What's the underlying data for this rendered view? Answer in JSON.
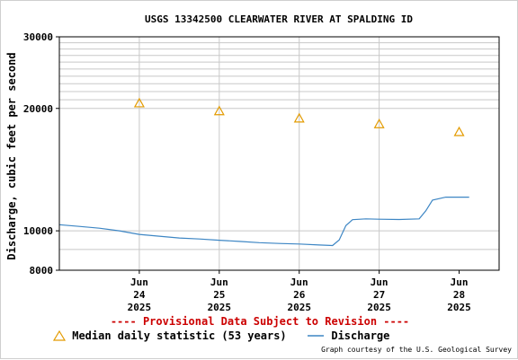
{
  "chart_data": {
    "type": "line",
    "title": "USGS 13342500 CLEARWATER RIVER AT SPALDING ID",
    "xlabel": "",
    "ylabel": "Discharge, cubic feet per second",
    "y_scale": "log",
    "ylim": [
      8000,
      30000
    ],
    "y_ticks": [
      {
        "value": 8000,
        "label": "8000"
      },
      {
        "value": 10000,
        "label": "10000"
      },
      {
        "value": 20000,
        "label": "20000"
      },
      {
        "value": 30000,
        "label": "30000"
      }
    ],
    "xlim": [
      "2025-06-23T12:00",
      "2025-06-29T00:00"
    ],
    "x_ticks": [
      {
        "date": "2025-06-24",
        "label": [
          "Jun",
          "24",
          "2025"
        ]
      },
      {
        "date": "2025-06-25",
        "label": [
          "Jun",
          "25",
          "2025"
        ]
      },
      {
        "date": "2025-06-26",
        "label": [
          "Jun",
          "26",
          "2025"
        ]
      },
      {
        "date": "2025-06-27",
        "label": [
          "Jun",
          "27",
          "2025"
        ]
      },
      {
        "date": "2025-06-28",
        "label": [
          "Jun",
          "28",
          "2025"
        ]
      }
    ],
    "grid": true,
    "legend_position": "bottom",
    "series": [
      {
        "name": "Discharge",
        "color": "#3d86c4",
        "style": "line",
        "points": [
          [
            "2025-06-23T12:00",
            10350
          ],
          [
            "2025-06-23T18:00",
            10250
          ],
          [
            "2025-06-24T00:00",
            10150
          ],
          [
            "2025-06-24T06:00",
            10000
          ],
          [
            "2025-06-24T12:00",
            9800
          ],
          [
            "2025-06-24T18:00",
            9700
          ],
          [
            "2025-06-25T00:00",
            9600
          ],
          [
            "2025-06-25T06:00",
            9550
          ],
          [
            "2025-06-25T12:00",
            9480
          ],
          [
            "2025-06-25T18:00",
            9420
          ],
          [
            "2025-06-26T00:00",
            9350
          ],
          [
            "2025-06-26T06:00",
            9310
          ],
          [
            "2025-06-26T12:00",
            9280
          ],
          [
            "2025-06-26T18:00",
            9230
          ],
          [
            "2025-06-26T22:00",
            9200
          ],
          [
            "2025-06-27T00:00",
            9500
          ],
          [
            "2025-06-27T02:00",
            10300
          ],
          [
            "2025-06-27T04:00",
            10650
          ],
          [
            "2025-06-27T08:00",
            10700
          ],
          [
            "2025-06-27T12:00",
            10680
          ],
          [
            "2025-06-27T18:00",
            10660
          ],
          [
            "2025-06-28T00:00",
            10700
          ],
          [
            "2025-06-28T02:00",
            11200
          ],
          [
            "2025-06-28T04:00",
            11900
          ],
          [
            "2025-06-28T08:00",
            12100
          ],
          [
            "2025-06-28T12:00",
            12100
          ],
          [
            "2025-06-28T15:00",
            12100
          ]
        ]
      },
      {
        "name": "Median daily statistic (53 years)",
        "color": "#e39b00",
        "style": "triangle",
        "points": [
          [
            "2025-06-24T12:00",
            20600
          ],
          [
            "2025-06-25T12:00",
            19700
          ],
          [
            "2025-06-26T12:00",
            18900
          ],
          [
            "2025-06-27T12:00",
            18300
          ],
          [
            "2025-06-28T12:00",
            17500
          ]
        ]
      }
    ]
  },
  "notice": "---- Provisional Data Subject to Revision ----",
  "legend": {
    "median_label": "Median daily statistic (53 years)",
    "discharge_label": "Discharge"
  },
  "credit": "Graph courtesy of the U.S. Geological Survey"
}
